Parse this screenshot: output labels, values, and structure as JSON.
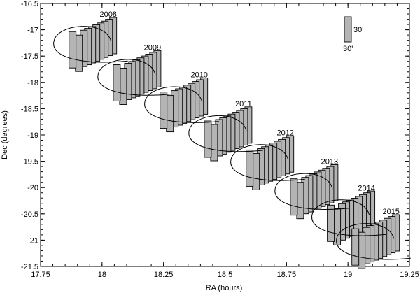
{
  "chart_data": {
    "type": "diagram",
    "xlabel": "RA (hours)",
    "ylabel": "Dec (degrees)",
    "xlim": [
      17.75,
      19.25
    ],
    "ylim": [
      -21.5,
      -16.5
    ],
    "xticks": [
      "17.75",
      "18",
      "18.25",
      "18.5",
      "18.75",
      "19",
      "19.25"
    ],
    "yticks": [
      "-16.5",
      "-17",
      "-17.5",
      "-18",
      "-18.5",
      "-19",
      "-19.5",
      "-20",
      "-20.5",
      "-21",
      "-21.5"
    ],
    "legend": {
      "size_label_x": "30'",
      "size_label_y": "30'"
    },
    "years": [
      {
        "label": "2008",
        "ra": 17.9,
        "dec": -17.3
      },
      {
        "label": "2009",
        "ra": 18.08,
        "dec": -17.93
      },
      {
        "label": "2010",
        "ra": 18.27,
        "dec": -18.45
      },
      {
        "label": "2011",
        "ra": 18.45,
        "dec": -19.0
      },
      {
        "label": "2012",
        "ra": 18.62,
        "dec": -19.55
      },
      {
        "label": "2013",
        "ra": 18.8,
        "dec": -20.1
      },
      {
        "label": "2014",
        "ra": 18.95,
        "dec": -20.6
      },
      {
        "label": "2015",
        "ra": 19.05,
        "dec": -21.05
      }
    ]
  }
}
